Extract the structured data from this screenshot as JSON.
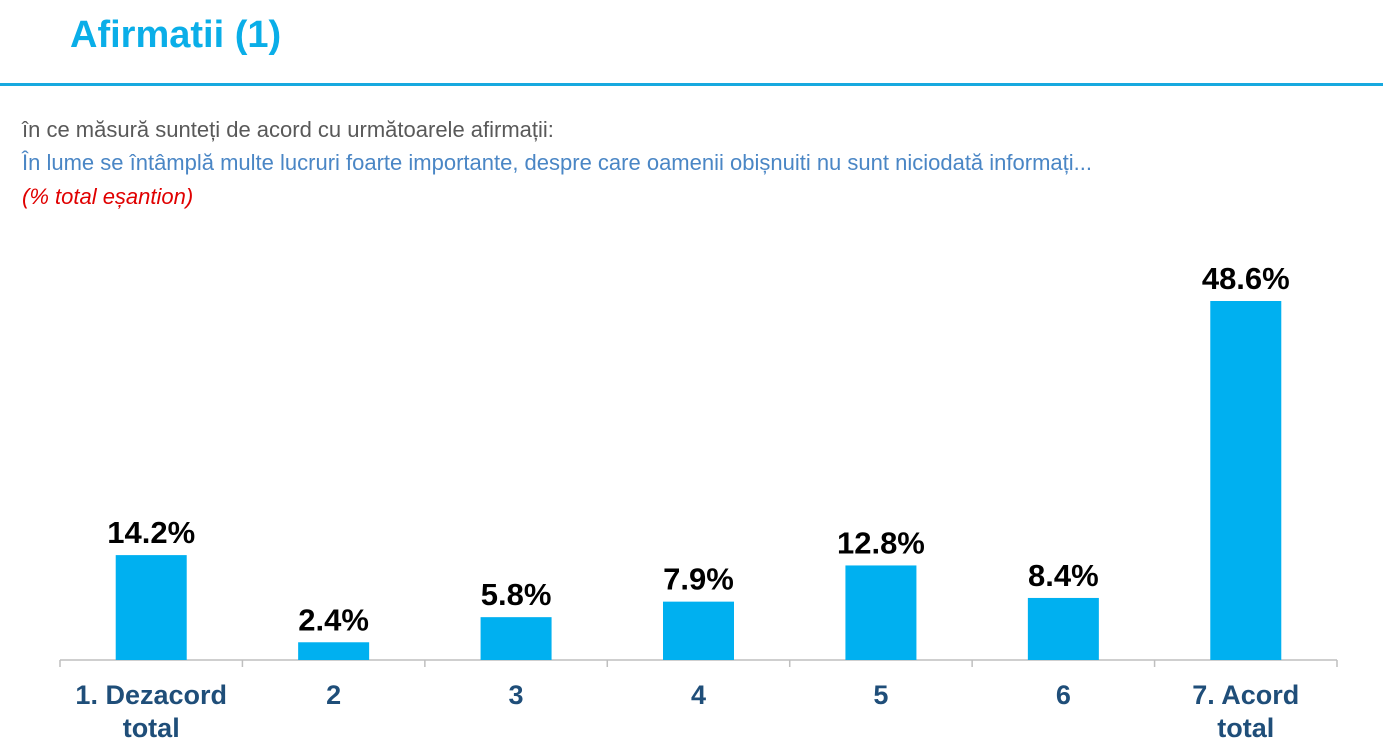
{
  "header": {
    "title": "Afirmatii (1)",
    "question": "în ce măsură sunteți de acord cu următoarele afirmații:",
    "statement": "În lume se întâmplă multe lucruri foarte importante, despre care oamenii obișnuiti nu sunt niciodată informați...",
    "base_note": "(% total eșantion)"
  },
  "colors": {
    "title": "#0aaee8",
    "bar": "#00b0f0",
    "category_text": "#1f4e79",
    "statement_text": "#4a86c5",
    "note_text": "#e00000"
  },
  "chart_data": {
    "type": "bar",
    "categories": [
      [
        "1. Dezacord",
        "total"
      ],
      [
        "2"
      ],
      [
        "3"
      ],
      [
        "4"
      ],
      [
        "5"
      ],
      [
        "6"
      ],
      [
        "7. Acord",
        "total"
      ]
    ],
    "values": [
      14.2,
      2.4,
      5.8,
      7.9,
      12.8,
      8.4,
      48.6
    ],
    "value_labels": [
      "14.2%",
      "2.4%",
      "5.8%",
      "7.9%",
      "12.8%",
      "8.4%",
      "48.6%"
    ],
    "unit": "%",
    "ylim": [
      0,
      48.6
    ],
    "grid": false,
    "legend": "none"
  }
}
